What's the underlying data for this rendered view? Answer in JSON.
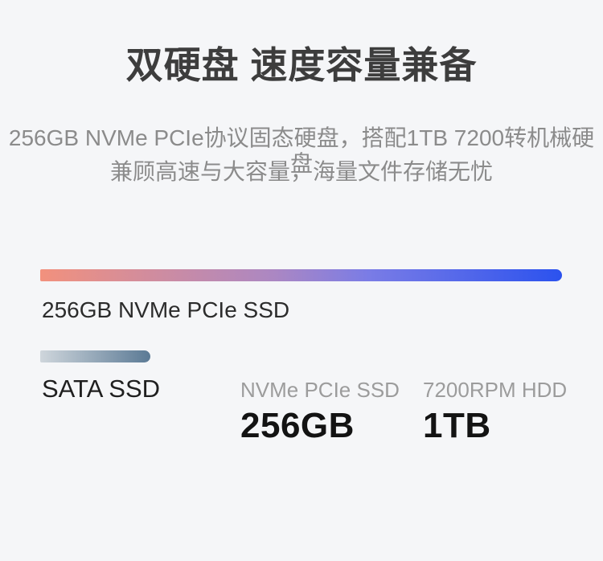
{
  "page": {
    "background_color": "#f5f6f8",
    "title": "双硬盘 速度容量兼备",
    "subtitle_lines": [
      "256GB NVMe PCIe协议固态硬盘，搭配1TB 7200转机械硬盘",
      "兼顾高速与大容量，海量文件存储无忧"
    ]
  },
  "comparison": {
    "type": "bar",
    "bars": [
      {
        "label": "256GB NVMe PCIe SSD",
        "length_pct": 100,
        "gradient": [
          "#f2917d 0%",
          "#ab87c3 45%",
          "#7a7ce6 63%",
          "#2b52ee 100%"
        ]
      },
      {
        "label": "SATA SSD",
        "length_pct": 21.1,
        "gradient": [
          "#cfd6dc 0%",
          "#5b7a95 100%"
        ]
      }
    ]
  },
  "specs": [
    {
      "name": "NVMe PCIe SSD",
      "value": "256GB"
    },
    {
      "name": "7200RPM HDD",
      "value": "1TB"
    }
  ]
}
